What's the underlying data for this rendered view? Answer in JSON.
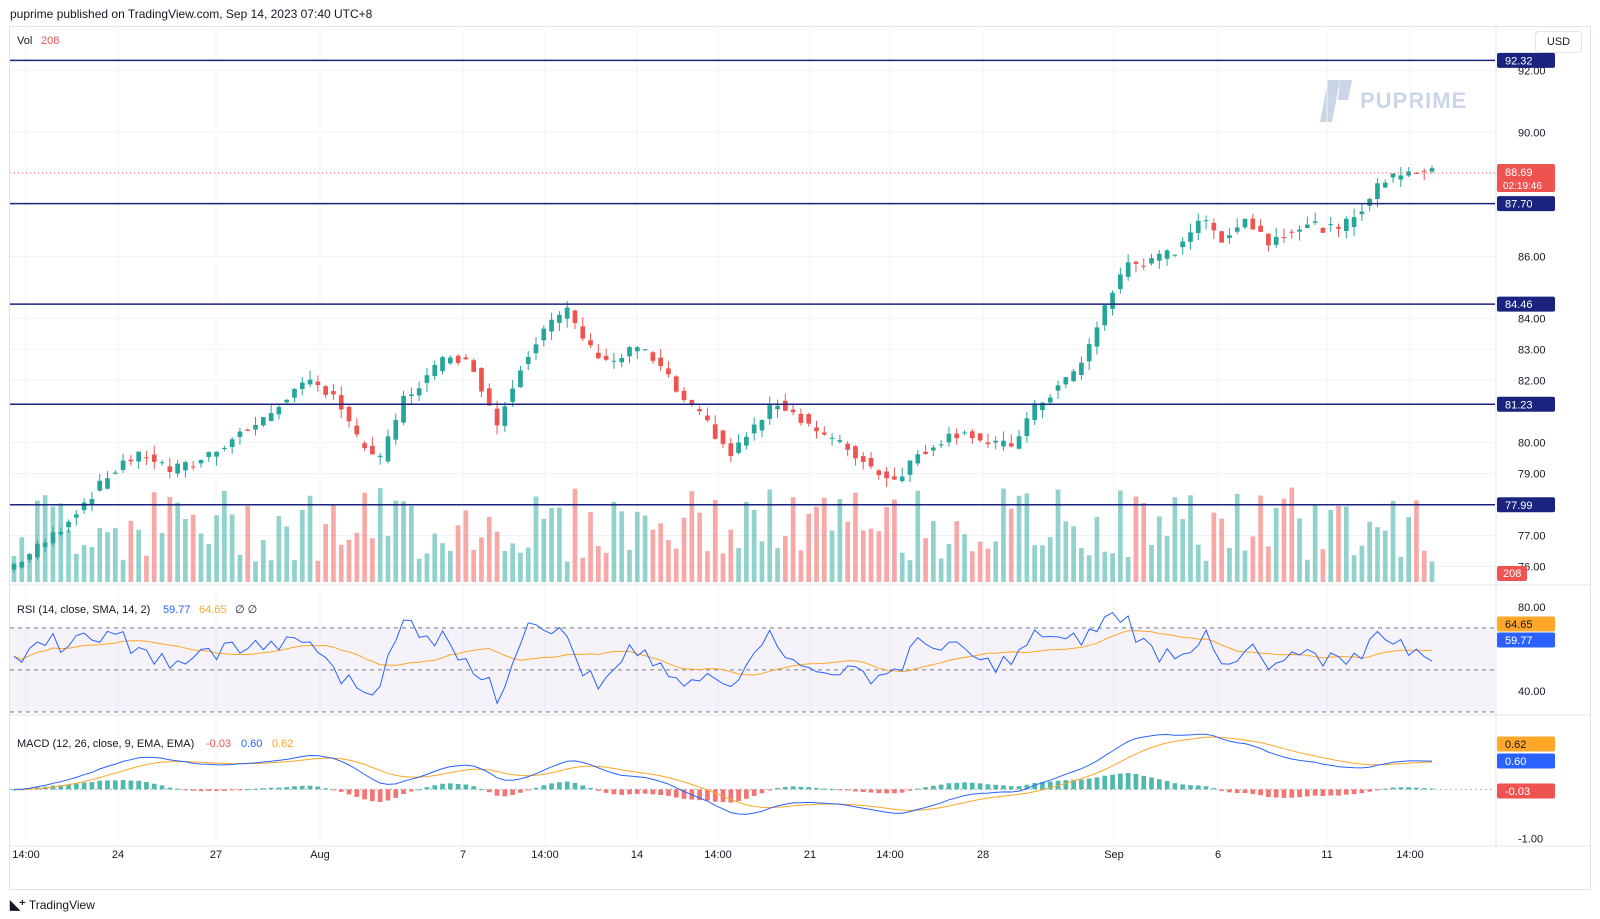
{
  "header": {
    "published": "puprime published on TradingView.com, Sep 14, 2023 07:40 UTC+8"
  },
  "currency_button": "USD",
  "watermark": "PUPRIME",
  "footer": {
    "brand": "TradingView"
  },
  "colors": {
    "up": "#26a69a",
    "down": "#ef5350",
    "level": "#1a237e",
    "rsi": "#2962ff",
    "rsi_ma": "#ffa726",
    "macd": "#2962ff",
    "signal": "#ffa726"
  },
  "price_pane": {
    "vol_label": "Vol",
    "vol_value": "208",
    "y_ticks": [
      "92.00",
      "90.00",
      "86.00",
      "84.00",
      "83.00",
      "82.00",
      "80.00",
      "79.00",
      "77.00",
      "76.00"
    ],
    "horizontal_levels": [
      92.32,
      87.7,
      84.46,
      81.23,
      77.99
    ],
    "level_labels": [
      "92.32",
      "87.70",
      "84.46",
      "81.23",
      "77.99"
    ],
    "last_price": "88.69",
    "countdown": "02:19:46",
    "vol_badge": "208"
  },
  "rsi_pane": {
    "title": "RSI (14, close, SMA, 14, 2)",
    "value": "59.77",
    "ma_value": "64.65",
    "extra": "∅ ∅",
    "y_ticks": [
      "80.00",
      "40.00"
    ],
    "badge_rsi": "59.77",
    "badge_ma": "64.65"
  },
  "macd_pane": {
    "title": "MACD (12, 26, close, 9, EMA, EMA)",
    "hist": "-0.03",
    "macd": "0.60",
    "signal": "0.62",
    "y_ticks": [
      "-1.00"
    ],
    "badges": [
      "0.62",
      "0.60",
      "-0.03"
    ]
  },
  "x_axis": [
    "14:00",
    "24",
    "27",
    "Aug",
    "7",
    "14:00",
    "14",
    "14:00",
    "21",
    "14:00",
    "28",
    "Sep",
    "6",
    "11",
    "14:00"
  ],
  "chart_data": {
    "type": "candlestick",
    "y_price_range": [
      75.5,
      93.3
    ],
    "close_path": [
      75.9,
      76.4,
      77.0,
      77.8,
      78.6,
      79.4,
      79.6,
      79.1,
      79.3,
      79.8,
      80.3,
      80.7,
      81.5,
      81.9,
      81.6,
      80.1,
      79.4,
      81.4,
      82.1,
      82.9,
      82.4,
      80.6,
      82.5,
      83.7,
      84.2,
      83.0,
      82.6,
      83.1,
      82.4,
      81.3,
      80.6,
      79.6,
      80.5,
      81.3,
      80.8,
      80.2,
      79.8,
      79.2,
      78.8,
      79.6,
      80.1,
      80.4,
      79.9,
      79.9,
      81.1,
      81.8,
      82.5,
      84.4,
      85.8,
      85.8,
      86.2,
      87.2,
      86.6,
      87.2,
      86.5,
      86.9,
      87.0,
      86.8,
      87.6,
      88.5,
      88.8,
      88.69
    ],
    "rsi_range": [
      30,
      88
    ],
    "macd_range": [
      -1.15,
      1.45
    ]
  }
}
